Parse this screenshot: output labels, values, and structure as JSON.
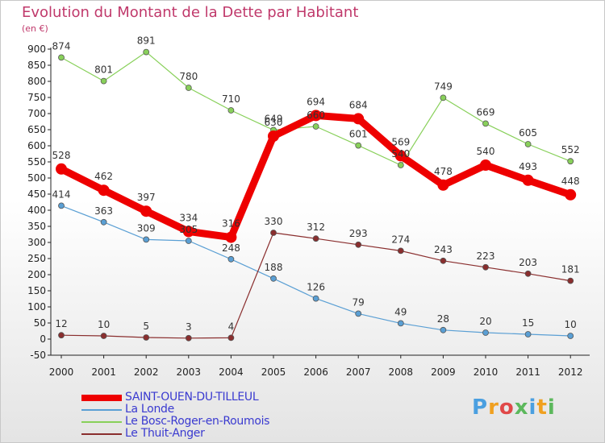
{
  "header": {
    "title": "Evolution du Montant de la Dette par Habitant",
    "subtitle": "(en €)"
  },
  "logo": {
    "text": "Proxiti",
    "letter_colors": [
      "#4a9fe0",
      "#f0a020",
      "#e04848",
      "#5cb85c",
      "#4a9fe0",
      "#f0a020",
      "#5cb85c"
    ]
  },
  "chart_data": {
    "type": "line",
    "x": [
      2000,
      2001,
      2002,
      2003,
      2004,
      2005,
      2006,
      2007,
      2008,
      2009,
      2010,
      2011,
      2012
    ],
    "ylim": [
      -50,
      900
    ],
    "yticks": [
      -50,
      0,
      50,
      100,
      150,
      200,
      250,
      300,
      350,
      400,
      450,
      500,
      550,
      600,
      650,
      700,
      750,
      800,
      850,
      900
    ],
    "grid": false,
    "legend_position": "bottom-left",
    "series": [
      {
        "name": "SAINT-OUEN-DU-TILLEUL",
        "color": "#ee0000",
        "emphasis": true,
        "values": [
          528,
          462,
          397,
          334,
          316,
          630,
          694,
          684,
          569,
          478,
          540,
          493,
          448
        ],
        "labels": [
          "528",
          "462",
          "397",
          "334",
          "316",
          "630",
          "694",
          "684",
          "569",
          "478",
          "540",
          "493",
          "448"
        ]
      },
      {
        "name": "La Londe",
        "color": "#5a9fd4",
        "emphasis": false,
        "values": [
          414,
          363,
          309,
          305,
          248,
          188,
          126,
          79,
          49,
          28,
          20,
          15,
          10
        ],
        "labels": [
          "414",
          "363",
          "309",
          "305",
          "248",
          "188",
          "126",
          "79",
          "49",
          "28",
          "20",
          "15",
          "10"
        ]
      },
      {
        "name": "Le Bosc-Roger-en-Roumois",
        "color": "#88d05a",
        "emphasis": false,
        "values": [
          874,
          801,
          891,
          780,
          710,
          649,
          660,
          601,
          540,
          749,
          669,
          605,
          552
        ],
        "labels": [
          "874",
          "801",
          "891",
          "780",
          "710",
          "649",
          "660",
          "601",
          "540",
          "749",
          "669",
          "605",
          "552"
        ]
      },
      {
        "name": "Le Thuit-Anger",
        "color": "#8a2e2e",
        "emphasis": false,
        "values": [
          12,
          10,
          5,
          3,
          4,
          330,
          312,
          293,
          274,
          243,
          223,
          203,
          181
        ],
        "labels": [
          "12",
          "10",
          "5",
          "3",
          "4",
          "330",
          "312",
          "293",
          "274",
          "243",
          "223",
          "203",
          "181"
        ]
      }
    ]
  }
}
